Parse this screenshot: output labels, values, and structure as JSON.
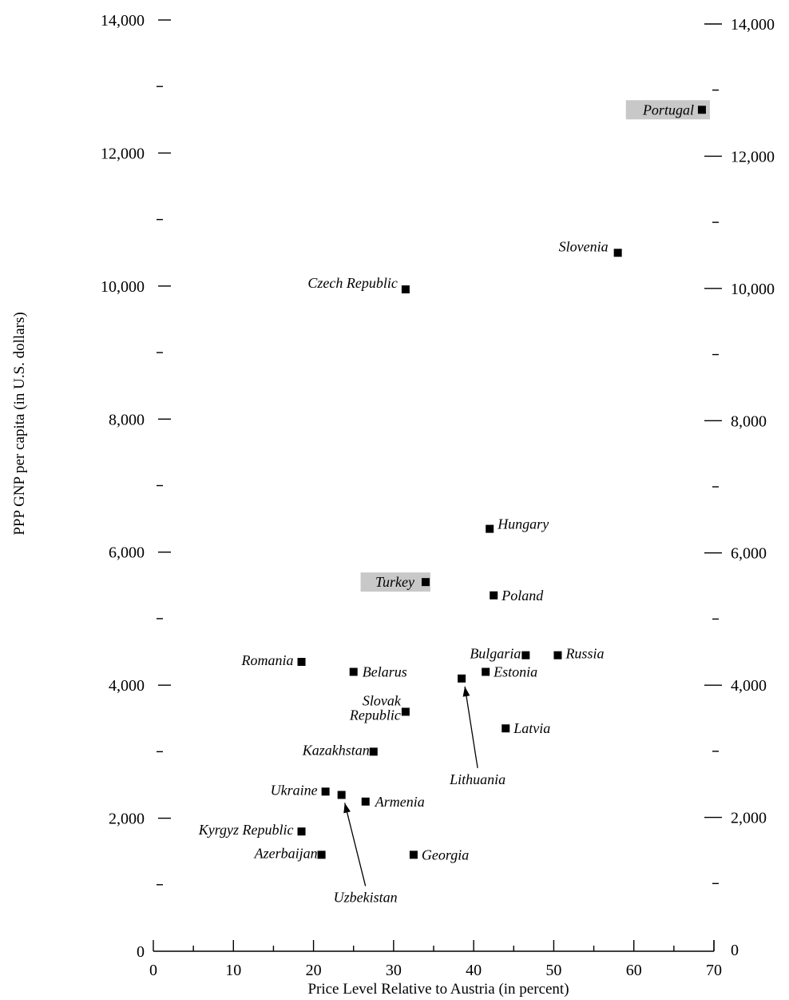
{
  "chart_data": {
    "type": "scatter",
    "title": "",
    "xlabel": "Price Level Relative to Austria (in percent)",
    "ylabel": "PPP GNP per capita (in U.S. dollars)",
    "xlim": [
      0,
      70
    ],
    "ylim": [
      0,
      14000
    ],
    "x_ticks": [
      "0",
      "10",
      "20",
      "30",
      "40",
      "50",
      "60",
      "70"
    ],
    "y_ticks": [
      "0",
      "2,000",
      "4,000",
      "6,000",
      "8,000",
      "10,000",
      "12,000",
      "14,000"
    ],
    "secondary_y_axis": true,
    "grid": false,
    "highlight_color": "#c8c8c8",
    "points": [
      {
        "label": "Portugal",
        "x": 68.5,
        "y": 12650,
        "highlight": true
      },
      {
        "label": "Slovenia",
        "x": 58,
        "y": 10500
      },
      {
        "label": "Czech Republic",
        "x": 31.5,
        "y": 9950
      },
      {
        "label": "Hungary",
        "x": 42,
        "y": 6350
      },
      {
        "label": "Turkey",
        "x": 34,
        "y": 5550,
        "highlight": true
      },
      {
        "label": "Poland",
        "x": 42.5,
        "y": 5350
      },
      {
        "label": "Bulgaria",
        "x": 46.5,
        "y": 4450
      },
      {
        "label": "Russia",
        "x": 50.5,
        "y": 4450
      },
      {
        "label": "Estonia",
        "x": 41.5,
        "y": 4200
      },
      {
        "label": "Romania",
        "x": 18.5,
        "y": 4350
      },
      {
        "label": "Belarus",
        "x": 25,
        "y": 4200
      },
      {
        "label": "Lithuania",
        "x": 38.5,
        "y": 4100
      },
      {
        "label": "Slovak Republic",
        "x": 31.5,
        "y": 3600
      },
      {
        "label": "Latvia",
        "x": 44,
        "y": 3350
      },
      {
        "label": "Kazakhstan",
        "x": 27.5,
        "y": 3000
      },
      {
        "label": "Ukraine",
        "x": 21.5,
        "y": 2400
      },
      {
        "label": "Uzbekistan",
        "x": 23.5,
        "y": 2350
      },
      {
        "label": "Armenia",
        "x": 26.5,
        "y": 2250
      },
      {
        "label": "Kyrgyz Republic",
        "x": 18.5,
        "y": 1800
      },
      {
        "label": "Azerbaijan",
        "x": 21,
        "y": 1450
      },
      {
        "label": "Georgia",
        "x": 32.5,
        "y": 1450
      }
    ]
  }
}
